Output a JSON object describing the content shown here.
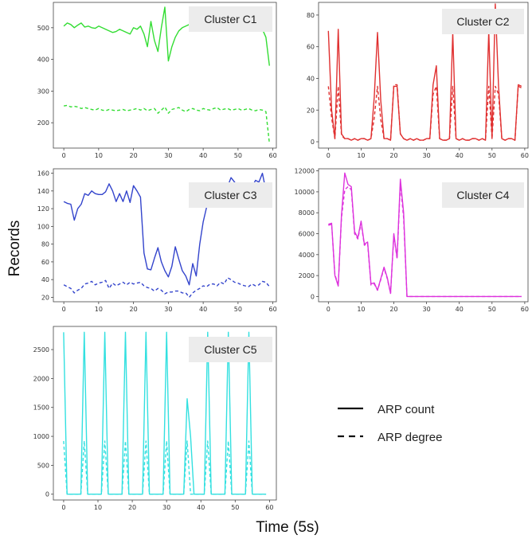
{
  "figure": {
    "ylabel": "Records",
    "xlabel": "Time (5s)",
    "legend": [
      {
        "label": "ARP count",
        "dash": "solid"
      },
      {
        "label": "ARP degree",
        "dash": "dashed"
      }
    ]
  },
  "chart_data": [
    {
      "type": "line",
      "title": "Cluster C1",
      "color": "#33dd33",
      "x": [
        0,
        1,
        2,
        3,
        4,
        5,
        6,
        7,
        8,
        9,
        10,
        11,
        12,
        13,
        14,
        15,
        16,
        17,
        18,
        19,
        20,
        21,
        22,
        23,
        24,
        25,
        26,
        27,
        28,
        29,
        30,
        31,
        32,
        33,
        34,
        35,
        36,
        37,
        38,
        39,
        40,
        41,
        42,
        43,
        44,
        45,
        46,
        47,
        48,
        49,
        50,
        51,
        52,
        53,
        54,
        55,
        56,
        57,
        58,
        59
      ],
      "xlim": [
        -3,
        61
      ],
      "ylim": [
        120,
        580
      ],
      "xticks": [
        0,
        10,
        20,
        30,
        40,
        50,
        60
      ],
      "yticks": [
        200,
        300,
        400,
        500
      ],
      "series": [
        {
          "name": "ARP count",
          "dash": "solid",
          "values": [
            505,
            515,
            510,
            500,
            508,
            515,
            502,
            505,
            500,
            498,
            505,
            500,
            495,
            490,
            485,
            488,
            495,
            490,
            485,
            480,
            500,
            495,
            505,
            480,
            440,
            520,
            460,
            425,
            500,
            565,
            395,
            440,
            470,
            490,
            500,
            505,
            510,
            500,
            505,
            495,
            500,
            505,
            500,
            495,
            500,
            498,
            495,
            500,
            495,
            500,
            497,
            500,
            495,
            500,
            498,
            500,
            497,
            495,
            470,
            380
          ]
        },
        {
          "name": "ARP degree",
          "dash": "dashed",
          "values": [
            253,
            255,
            250,
            252,
            250,
            245,
            248,
            245,
            242,
            240,
            245,
            240,
            238,
            242,
            240,
            238,
            240,
            242,
            238,
            240,
            242,
            245,
            240,
            245,
            238,
            242,
            245,
            230,
            240,
            250,
            230,
            242,
            245,
            248,
            240,
            235,
            242,
            245,
            240,
            238,
            245,
            242,
            240,
            245,
            248,
            240,
            243,
            245,
            240,
            242,
            245,
            240,
            242,
            245,
            240,
            238,
            242,
            240,
            235,
            135
          ]
        }
      ]
    },
    {
      "type": "line",
      "title": "Cluster C2",
      "color": "#e03030",
      "x": [
        0,
        1,
        2,
        3,
        4,
        5,
        6,
        7,
        8,
        9,
        10,
        11,
        12,
        13,
        14,
        15,
        16,
        17,
        18,
        19,
        20,
        21,
        22,
        23,
        24,
        25,
        26,
        27,
        28,
        29,
        30,
        31,
        32,
        33,
        34,
        35,
        36,
        37,
        38,
        39,
        40,
        41,
        42,
        43,
        44,
        45,
        46,
        47,
        48,
        49,
        50,
        51,
        52,
        53,
        54,
        55,
        56,
        57,
        58,
        59
      ],
      "xlim": [
        -3,
        61
      ],
      "ylim": [
        -4,
        88
      ],
      "xticks": [
        0,
        10,
        20,
        30,
        40,
        50,
        60
      ],
      "yticks": [
        0,
        20,
        40,
        60,
        80
      ],
      "series": [
        {
          "name": "ARP count",
          "dash": "solid",
          "values": [
            70,
            20,
            2,
            71,
            5,
            2,
            2,
            1,
            2,
            1,
            2,
            2,
            1,
            2,
            28,
            69,
            26,
            2,
            2,
            1,
            35,
            35,
            5,
            2,
            1,
            2,
            1,
            2,
            1,
            1,
            2,
            2,
            36,
            48,
            2,
            1,
            1,
            2,
            69,
            2,
            1,
            2,
            1,
            1,
            2,
            2,
            1,
            2,
            1,
            70,
            2,
            87,
            35,
            2,
            1,
            2,
            2,
            1,
            36,
            35
          ]
        },
        {
          "name": "ARP degree",
          "dash": "dashed",
          "values": [
            35,
            15,
            2,
            35,
            4,
            2,
            2,
            1,
            2,
            1,
            2,
            2,
            1,
            2,
            15,
            35,
            14,
            2,
            2,
            1,
            36,
            36,
            5,
            2,
            1,
            2,
            1,
            2,
            1,
            1,
            2,
            2,
            30,
            35,
            2,
            1,
            1,
            2,
            35,
            2,
            1,
            2,
            1,
            1,
            2,
            2,
            1,
            2,
            1,
            35,
            2,
            35,
            30,
            2,
            1,
            2,
            2,
            1,
            35,
            34
          ]
        }
      ]
    },
    {
      "type": "line",
      "title": "Cluster C3",
      "color": "#3344cc",
      "x": [
        0,
        1,
        2,
        3,
        4,
        5,
        6,
        7,
        8,
        9,
        10,
        11,
        12,
        13,
        14,
        15,
        16,
        17,
        18,
        19,
        20,
        21,
        22,
        23,
        24,
        25,
        26,
        27,
        28,
        29,
        30,
        31,
        32,
        33,
        34,
        35,
        36,
        37,
        38,
        39,
        40,
        41,
        42,
        43,
        44,
        45,
        46,
        47,
        48,
        49,
        50,
        51,
        52,
        53,
        54,
        55,
        56,
        57,
        58,
        59
      ],
      "xlim": [
        -3,
        61
      ],
      "ylim": [
        15,
        165
      ],
      "xticks": [
        0,
        10,
        20,
        30,
        40,
        50,
        60
      ],
      "yticks": [
        20,
        40,
        60,
        80,
        100,
        120,
        140,
        160
      ],
      "series": [
        {
          "name": "ARP count",
          "dash": "solid",
          "values": [
            128,
            126,
            125,
            107,
            120,
            125,
            137,
            135,
            140,
            137,
            136,
            136,
            139,
            148,
            140,
            128,
            137,
            128,
            140,
            127,
            146,
            140,
            133,
            70,
            52,
            51,
            64,
            76,
            60,
            50,
            43,
            55,
            77,
            63,
            50,
            44,
            34,
            58,
            44,
            80,
            105,
            122,
            128,
            130,
            135,
            132,
            140,
            145,
            155,
            150,
            145,
            135,
            140,
            142,
            144,
            152,
            150,
            160,
            140,
            131
          ]
        },
        {
          "name": "ARP degree",
          "dash": "dashed",
          "values": [
            34,
            32,
            30,
            25,
            28,
            30,
            35,
            36,
            38,
            34,
            36,
            37,
            39,
            30,
            36,
            33,
            35,
            37,
            34,
            37,
            35,
            36,
            37,
            33,
            31,
            30,
            27,
            30,
            28,
            24,
            26,
            26,
            27,
            27,
            25,
            25,
            20,
            25,
            28,
            30,
            33,
            32,
            35,
            35,
            33,
            37,
            35,
            42,
            40,
            37,
            36,
            34,
            33,
            32,
            35,
            33,
            34,
            38,
            37,
            32
          ]
        }
      ]
    },
    {
      "type": "line",
      "title": "Cluster C4",
      "color": "#dd33dd",
      "x": [
        0,
        1,
        2,
        3,
        4,
        5,
        6,
        7,
        8,
        9,
        10,
        11,
        12,
        13,
        14,
        15,
        16,
        17,
        18,
        19,
        20,
        21,
        22,
        23,
        24,
        25,
        26,
        27,
        28,
        29,
        30,
        31,
        32,
        33,
        34,
        35,
        36,
        37,
        38,
        39,
        40,
        41,
        42,
        43,
        44,
        45,
        46,
        47,
        48,
        49,
        50,
        51,
        52,
        53,
        54,
        55,
        56,
        57,
        58,
        59
      ],
      "xlim": [
        -3,
        61
      ],
      "ylim": [
        -500,
        12200
      ],
      "xticks": [
        0,
        10,
        20,
        30,
        40,
        50,
        60
      ],
      "yticks": [
        0,
        2000,
        4000,
        6000,
        8000,
        10000,
        12000
      ],
      "series": [
        {
          "name": "ARP count",
          "dash": "solid",
          "values": [
            6900,
            7000,
            2000,
            1000,
            7800,
            11800,
            10700,
            10500,
            6200,
            5600,
            7200,
            5000,
            5200,
            1200,
            1300,
            600,
            1700,
            2800,
            1800,
            300,
            6000,
            3700,
            11200,
            8000,
            0,
            0,
            0,
            0,
            0,
            0,
            0,
            0,
            0,
            0,
            0,
            0,
            0,
            0,
            0,
            0,
            0,
            0,
            0,
            0,
            0,
            0,
            0,
            0,
            0,
            0,
            0,
            0,
            0,
            0,
            0,
            0,
            0,
            0,
            0,
            0
          ]
        },
        {
          "name": "ARP degree",
          "dash": "dashed",
          "values": [
            6800,
            6900,
            2100,
            1100,
            7500,
            10200,
            10500,
            10200,
            6000,
            5500,
            7000,
            4900,
            5100,
            1100,
            1200,
            600,
            1600,
            2700,
            1700,
            300,
            5800,
            3600,
            10800,
            7500,
            0,
            0,
            0,
            0,
            0,
            0,
            0,
            0,
            0,
            0,
            0,
            0,
            0,
            0,
            0,
            0,
            0,
            0,
            0,
            0,
            0,
            0,
            0,
            0,
            0,
            0,
            0,
            0,
            0,
            0,
            0,
            0,
            0,
            0,
            0,
            0
          ]
        }
      ]
    },
    {
      "type": "line",
      "title": "Cluster C5",
      "color": "#33e0e0",
      "x": [
        0,
        1,
        2,
        3,
        4,
        5,
        6,
        7,
        8,
        9,
        10,
        11,
        12,
        13,
        14,
        15,
        16,
        17,
        18,
        19,
        20,
        21,
        22,
        23,
        24,
        25,
        26,
        27,
        28,
        29,
        30,
        31,
        32,
        33,
        34,
        35,
        36,
        37,
        38,
        39,
        40,
        41,
        42,
        43,
        44,
        45,
        46,
        47,
        48,
        49,
        50,
        51,
        52,
        53,
        54,
        55,
        56,
        57,
        58,
        59
      ],
      "xlim": [
        -3,
        62
      ],
      "ylim": [
        -100,
        2900
      ],
      "xticks": [
        0,
        10,
        20,
        30,
        40,
        50,
        60
      ],
      "yticks": [
        0,
        500,
        1000,
        1500,
        2000,
        2500
      ],
      "series": [
        {
          "name": "ARP count",
          "dash": "solid",
          "values": [
            2800,
            0,
            0,
            0,
            0,
            0,
            2800,
            0,
            0,
            0,
            0,
            0,
            2800,
            0,
            0,
            0,
            0,
            0,
            2800,
            0,
            0,
            0,
            0,
            0,
            2800,
            0,
            0,
            0,
            0,
            0,
            2800,
            0,
            0,
            0,
            0,
            0,
            1650,
            1000,
            0,
            0,
            0,
            0,
            2800,
            0,
            0,
            0,
            0,
            0,
            2800,
            0,
            0,
            0,
            0,
            0,
            2800,
            0,
            0,
            0,
            0,
            0
          ]
        },
        {
          "name": "ARP degree",
          "dash": "dashed",
          "values": [
            920,
            0,
            0,
            0,
            0,
            0,
            920,
            0,
            0,
            0,
            0,
            0,
            920,
            0,
            0,
            0,
            0,
            0,
            920,
            0,
            0,
            0,
            0,
            0,
            920,
            0,
            0,
            0,
            0,
            0,
            920,
            0,
            0,
            0,
            0,
            0,
            920,
            0,
            0,
            0,
            0,
            0,
            920,
            0,
            0,
            0,
            0,
            0,
            920,
            0,
            0,
            0,
            0,
            0,
            920,
            0,
            0,
            0,
            0,
            0
          ]
        }
      ]
    }
  ]
}
